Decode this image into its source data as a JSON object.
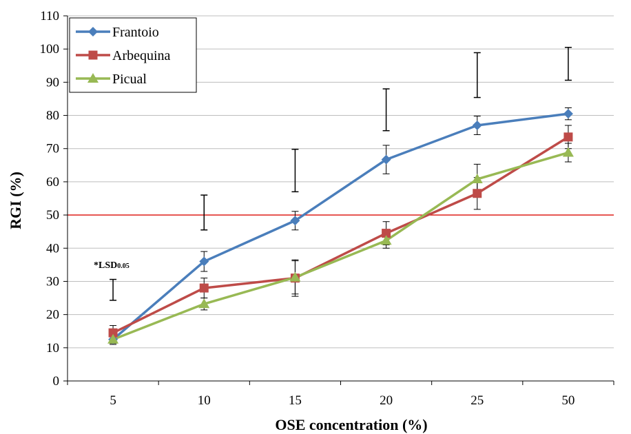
{
  "chart_data": {
    "type": "line",
    "xlabel": "OSE concentration (%)",
    "ylabel": "RGI (%)",
    "categories": [
      "5",
      "10",
      "15",
      "20",
      "25",
      "50"
    ],
    "ylim": [
      0,
      110
    ],
    "yticks": [
      0,
      10,
      20,
      30,
      40,
      50,
      60,
      70,
      80,
      90,
      100,
      110
    ],
    "grid": true,
    "legend_position": "top-left",
    "reference_line": {
      "y": 50,
      "color": "#e0201b"
    },
    "series": [
      {
        "name": "Frantoio",
        "marker": "diamond",
        "color": "#4a7ebb",
        "values": [
          12.5,
          36,
          48.3,
          66.7,
          77,
          80.5
        ],
        "error": [
          1.5,
          3,
          2.8,
          4.3,
          2.8,
          1.8
        ]
      },
      {
        "name": "Arbequina",
        "marker": "square",
        "color": "#be4b48",
        "values": [
          14.5,
          28,
          31,
          44.5,
          56.5,
          73.5
        ],
        "error": [
          2.2,
          3,
          5.5,
          3.5,
          4.8,
          3.5
        ]
      },
      {
        "name": "Picual",
        "marker": "triangle",
        "color": "#98b954",
        "values": [
          12.5,
          23.2,
          31.2,
          42.3,
          60.8,
          68.8
        ],
        "error": [
          1.2,
          1.8,
          5,
          2.3,
          4.5,
          2.8
        ]
      }
    ],
    "lsd": {
      "label_main": "*LSD",
      "label_sub": "0.05",
      "bars": [
        {
          "category": "5",
          "low": 24.3,
          "high": 30.6
        },
        {
          "category": "10",
          "low": 45.5,
          "high": 56
        },
        {
          "category": "15",
          "low": 57,
          "high": 69.8
        },
        {
          "category": "20",
          "low": 75.4,
          "high": 88
        },
        {
          "category": "25",
          "low": 85.4,
          "high": 98.9
        },
        {
          "category": "50",
          "low": 90.6,
          "high": 100.5
        }
      ]
    }
  }
}
